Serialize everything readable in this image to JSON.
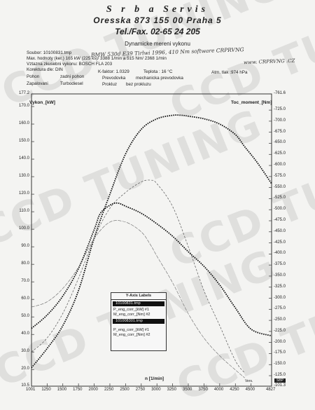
{
  "header": {
    "line1": "S r b a   Servis",
    "line2": "Oresska 873     155 00 Praha 5",
    "line3": "Tel./Fax. 02-65 24 205",
    "subtitle": "Dynamicke mereni vykonu"
  },
  "info": {
    "soubor": "Soubor: 10100831.tmp",
    "max": "Max. hodnoty (ker.)    165 kW (225 ks)/ 3388 1/min  a   515 Nm/ 2368 1/min",
    "vztaznorma": "Vztazna zkusebni vykonu: BOSCH FLA 203",
    "korektura": "Korektura dle:  DIN",
    "kfaktor": "K-faktor: 1.0329",
    "teplota": "Teplota     :  16 °C",
    "tlak": "Atm. tlak   :974 hPa",
    "pohon_lbl": "Pohon",
    "pohon_val": "zadni pohon",
    "prevodovka_lbl": "Prevodovka",
    "prevodovka_val": "mechanicka prevodovka",
    "zapalovani_lbl": "Zapalovani",
    "zapalovani_val": "Turbodiesel",
    "prokluz_lbl": "Prokluz",
    "prokluz_val": "bez prokluzu"
  },
  "handwriting": {
    "note1": "BMW  530d  E39   Tirlwi 1996,  410 Nm  software CRPRVNG",
    "note2": "www. CRPRVNG .CZ"
  },
  "chart_data": {
    "type": "line",
    "xlabel": "n  [1/min]",
    "ylabel_left": "Vykon_[kW]",
    "ylabel_right": "Toc_moment_[Nm]",
    "x_ticks": [
      "1001",
      "1250",
      "1500",
      "1750",
      "2000",
      "2250",
      "2500",
      "2750",
      "3000",
      "3250",
      "3500",
      "3750",
      "4000",
      "4250",
      "4500",
      "4827"
    ],
    "xlim": [
      1001,
      4827
    ],
    "y_left_ticks": [
      "177.2",
      "170.0",
      "160.0",
      "150.0",
      "140.0",
      "130.0",
      "120.0",
      "110.0",
      "100.0",
      "90.0",
      "80.0",
      "70.0",
      "60.0",
      "50.0",
      "40.0",
      "30.0",
      "20.0",
      "10.5"
    ],
    "y_left_lim": [
      10.5,
      177.2
    ],
    "y_right_ticks": [
      "-761.6",
      "-725.0",
      "-700.0",
      "-675.0",
      "-650.0",
      "-625.0",
      "-600.0",
      "-575.0",
      "-550.0",
      "-525.0",
      "-500.0",
      "-475.0",
      "-450.0",
      "-425.0",
      "-400.0",
      "-375.0",
      "-350.0",
      "-325.0",
      "-300.0",
      "-275.0",
      "-250.0",
      "-225.0",
      "-200.0",
      "-175.0",
      "-150.0",
      "-125.0",
      "-101.3"
    ],
    "y_right_lim": [
      101.3,
      761.6
    ],
    "series": [
      {
        "name": "P_eng_corr_[kW] #1",
        "axis": "left",
        "style": "dotted-bold",
        "x": [
          1001,
          1250,
          1500,
          1750,
          2000,
          2250,
          2500,
          2750,
          3000,
          3250,
          3388,
          3500,
          3750,
          4000,
          4250,
          4400,
          4600,
          4827
        ],
        "y": [
          21,
          32,
          45,
          65,
          95,
          120,
          143,
          157,
          163,
          165,
          165,
          164.5,
          163,
          160,
          154,
          147,
          138,
          126
        ]
      },
      {
        "name": "M_eng_corr_[Nm] #1",
        "axis": "right",
        "style": "dotted-bold",
        "x": [
          1001,
          1250,
          1500,
          1750,
          2000,
          2100,
          2250,
          2368,
          2500,
          2750,
          3000,
          3250,
          3500,
          3750,
          4000,
          4250,
          4500,
          4827
        ],
        "y": [
          232,
          262,
          305,
          367,
          455,
          492,
          510,
          515,
          508,
          492,
          468,
          440,
          405,
          372,
          330,
          278,
          230,
          215
        ]
      },
      {
        "name": "P_eng_corr_[kW] #2",
        "axis": "left",
        "style": "thin-dashed",
        "x": [
          1001,
          1250,
          1500,
          1750,
          2000,
          2250,
          2500,
          2750,
          2900,
          3000,
          3250,
          3500,
          3750,
          4000,
          4250,
          4400
        ],
        "y": [
          30,
          38,
          52,
          72,
          95,
          112,
          121,
          127,
          128,
          126,
          113,
          90,
          65,
          45,
          25,
          18
        ]
      },
      {
        "name": "M_eng_corr_[Nm] #2",
        "axis": "right",
        "style": "thin-solid",
        "x": [
          1001,
          1250,
          1500,
          1750,
          2000,
          2250,
          2500,
          2750,
          2900,
          3000,
          3250,
          3500,
          3750,
          4000,
          4250,
          4400
        ],
        "y": [
          280,
          292,
          322,
          370,
          435,
          472,
          472,
          450,
          420,
          395,
          335,
          265,
          210,
          170,
          138,
          120
        ]
      }
    ]
  },
  "legend": {
    "title": "Y-Axis Labels",
    "file1": "10100831.tmp",
    "s1": "P_eng_corr_[kW] #1",
    "s2": "M_eng_corr_[Nm] #2",
    "file2": "101008301.tmp",
    "s3": "P_eng_corr_[kW] #1",
    "s4": "M_eng_corr_[Nm] #2"
  },
  "footer": {
    "left": "Vers.",
    "right": "SBP"
  }
}
